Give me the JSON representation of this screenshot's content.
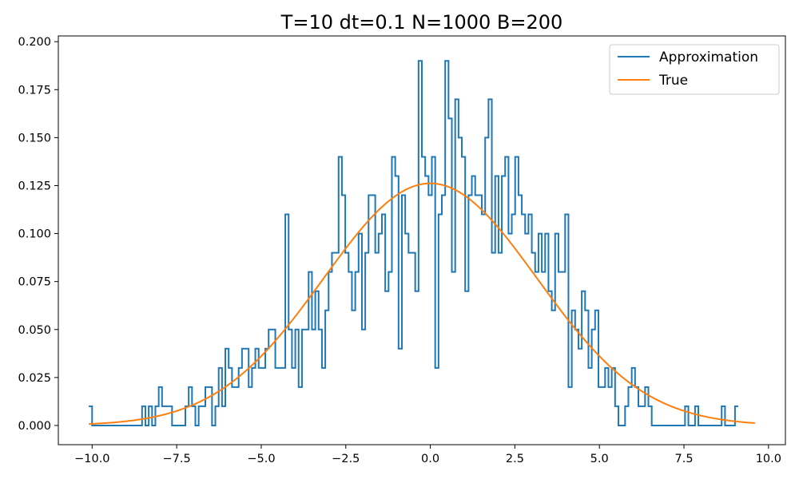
{
  "chart_data": {
    "type": "line",
    "title": "T=10 dt=0.1 N=1000 B=200",
    "xlabel": "",
    "ylabel": "",
    "xlim": [
      -11.0,
      10.5
    ],
    "ylim": [
      -0.01,
      0.203
    ],
    "x_ticks": [
      -10,
      -7.5,
      -5,
      -2.5,
      0,
      2.5,
      5,
      7.5,
      10
    ],
    "x_tick_labels": [
      "−10.0",
      "−7.5",
      "−5.0",
      "−2.5",
      "0.0",
      "2.5",
      "5.0",
      "7.5",
      "10.0"
    ],
    "y_ticks": [
      0,
      0.025,
      0.05,
      0.075,
      0.1,
      0.125,
      0.15,
      0.175,
      0.2
    ],
    "y_tick_labels": [
      "0.000",
      "0.025",
      "0.050",
      "0.075",
      "0.100",
      "0.125",
      "0.150",
      "0.175",
      "0.200"
    ],
    "grid": false,
    "legend_position": "top-right",
    "series": [
      {
        "name": "Approximation",
        "color": "#1f77b4",
        "style": "step",
        "x_start": -10.1,
        "bin_width": 0.0985,
        "values": [
          0.01,
          0.0,
          0.0,
          0.0,
          0.0,
          0.0,
          0.0,
          0.0,
          0.0,
          0.0,
          0.0,
          0.0,
          0.0,
          0.0,
          0.0,
          0.0,
          0.01,
          0.0,
          0.01,
          0.0,
          0.01,
          0.02,
          0.01,
          0.01,
          0.01,
          0.0,
          0.0,
          0.0,
          0.0,
          0.01,
          0.02,
          0.01,
          0.0,
          0.01,
          0.01,
          0.02,
          0.02,
          0.0,
          0.01,
          0.03,
          0.01,
          0.04,
          0.03,
          0.02,
          0.02,
          0.03,
          0.04,
          0.04,
          0.02,
          0.03,
          0.04,
          0.03,
          0.03,
          0.04,
          0.05,
          0.05,
          0.03,
          0.03,
          0.03,
          0.11,
          0.05,
          0.03,
          0.05,
          0.02,
          0.05,
          0.05,
          0.08,
          0.05,
          0.07,
          0.05,
          0.03,
          0.06,
          0.08,
          0.09,
          0.09,
          0.14,
          0.12,
          0.09,
          0.08,
          0.06,
          0.08,
          0.1,
          0.05,
          0.09,
          0.12,
          0.12,
          0.09,
          0.1,
          0.11,
          0.07,
          0.08,
          0.14,
          0.13,
          0.04,
          0.12,
          0.1,
          0.09,
          0.09,
          0.07,
          0.19,
          0.14,
          0.13,
          0.12,
          0.14,
          0.03,
          0.11,
          0.12,
          0.19,
          0.16,
          0.08,
          0.17,
          0.15,
          0.14,
          0.07,
          0.12,
          0.13,
          0.12,
          0.12,
          0.11,
          0.15,
          0.17,
          0.09,
          0.13,
          0.09,
          0.13,
          0.14,
          0.1,
          0.11,
          0.14,
          0.12,
          0.11,
          0.1,
          0.11,
          0.09,
          0.08,
          0.1,
          0.08,
          0.1,
          0.07,
          0.06,
          0.1,
          0.08,
          0.08,
          0.11,
          0.02,
          0.06,
          0.05,
          0.04,
          0.07,
          0.06,
          0.03,
          0.05,
          0.06,
          0.02,
          0.02,
          0.03,
          0.02,
          0.03,
          0.01,
          0.0,
          0.0,
          0.01,
          0.02,
          0.03,
          0.02,
          0.01,
          0.01,
          0.02,
          0.01,
          0.0,
          0.0,
          0.0,
          0.0,
          0.0,
          0.0,
          0.0,
          0.0,
          0.0,
          0.0,
          0.01,
          0.0,
          0.0,
          0.01,
          0.0,
          0.0,
          0.0,
          0.0,
          0.0,
          0.0,
          0.0,
          0.01,
          0.0,
          0.0,
          0.0,
          0.01
        ]
      },
      {
        "name": "True",
        "color": "#ff7f0e",
        "style": "line",
        "function": "normal_pdf",
        "mean": 0,
        "variance": 10,
        "x_range": [
          -10.1,
          9.6
        ]
      }
    ]
  }
}
